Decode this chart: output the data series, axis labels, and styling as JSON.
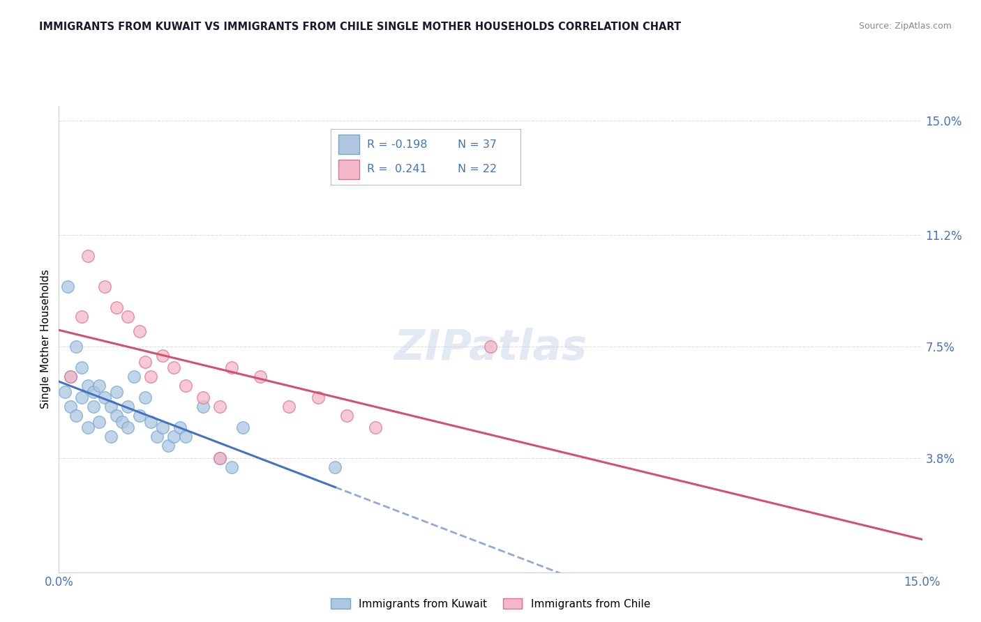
{
  "title": "IMMIGRANTS FROM KUWAIT VS IMMIGRANTS FROM CHILE SINGLE MOTHER HOUSEHOLDS CORRELATION CHART",
  "source": "Source: ZipAtlas.com",
  "ylabel": "Single Mother Households",
  "xmin": 0.0,
  "xmax": 15.0,
  "ymin": 0.0,
  "ymax": 15.5,
  "yticks": [
    3.8,
    7.5,
    11.2,
    15.0
  ],
  "ytick_labels": [
    "3.8%",
    "7.5%",
    "11.2%",
    "15.0%"
  ],
  "xtick_left": "0.0%",
  "xtick_right": "15.0%",
  "watermark": "ZIPatlas",
  "kuwait_color": "#aec6e0",
  "kuwait_edge": "#6ea8d4",
  "chile_color": "#f4b8c8",
  "chile_edge": "#e07090",
  "line_kuwait_color": "#4472c4",
  "line_chile_color": "#d45070",
  "legend_r_kuwait": "-0.198",
  "legend_n_kuwait": "37",
  "legend_r_chile": "0.241",
  "legend_n_chile": "22",
  "kuwait_x": [
    0.1,
    0.2,
    0.2,
    0.3,
    0.3,
    0.4,
    0.4,
    0.5,
    0.5,
    0.6,
    0.6,
    0.7,
    0.7,
    0.8,
    0.9,
    0.9,
    1.0,
    1.0,
    1.1,
    1.2,
    1.2,
    1.3,
    1.4,
    1.5,
    1.6,
    1.7,
    1.8,
    1.9,
    2.0,
    2.1,
    2.2,
    2.5,
    2.8,
    3.0,
    3.2,
    4.8,
    0.15
  ],
  "kuwait_y": [
    6.0,
    5.5,
    6.5,
    7.5,
    5.2,
    6.8,
    5.8,
    6.2,
    4.8,
    5.5,
    6.0,
    5.0,
    6.2,
    5.8,
    5.5,
    4.5,
    5.2,
    6.0,
    5.0,
    5.5,
    4.8,
    6.5,
    5.2,
    5.8,
    5.0,
    4.5,
    4.8,
    4.2,
    4.5,
    4.8,
    4.5,
    5.5,
    3.8,
    3.5,
    4.8,
    3.5,
    9.5
  ],
  "chile_x": [
    0.2,
    0.4,
    0.5,
    0.8,
    1.0,
    1.2,
    1.4,
    1.5,
    1.6,
    1.8,
    2.0,
    2.2,
    2.5,
    2.8,
    3.0,
    3.5,
    4.0,
    4.5,
    5.0,
    5.5,
    7.5,
    2.8
  ],
  "chile_y": [
    6.5,
    8.5,
    10.5,
    9.5,
    8.8,
    8.5,
    8.0,
    7.0,
    6.5,
    7.2,
    6.8,
    6.2,
    5.8,
    5.5,
    6.8,
    6.5,
    5.5,
    5.8,
    5.2,
    4.8,
    7.5,
    3.8
  ],
  "title_color": "#1a1a2e",
  "label_color": "#4472c4",
  "grid_color": "#dddddd",
  "axis_color": "#cccccc"
}
